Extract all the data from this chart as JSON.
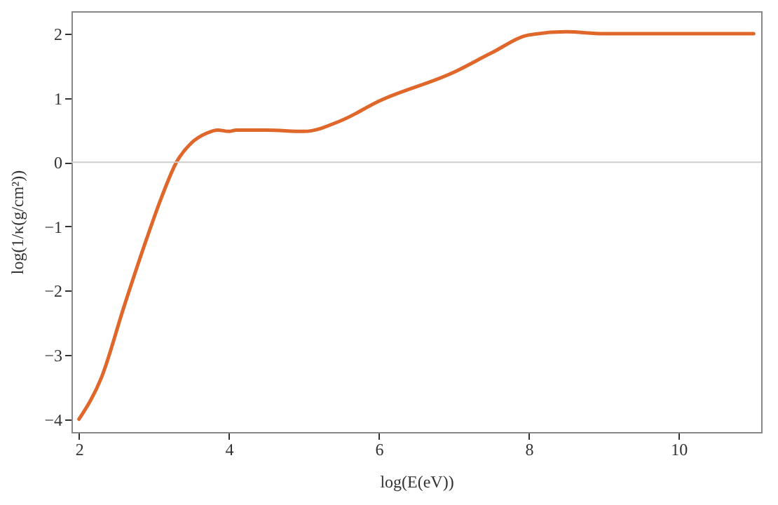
{
  "chart_data": {
    "type": "line",
    "xlabel": "log(E(eV))",
    "ylabel": "log(1/κ(g/cm²))",
    "x": [
      2,
      2.3,
      2.6,
      2.9,
      3.1,
      3.3,
      3.5,
      3.7,
      3.85,
      4,
      4.1,
      4.5,
      5,
      5.5,
      6,
      7,
      7.5,
      8,
      8.5,
      9,
      11
    ],
    "series": [
      {
        "color": "#e0672a",
        "values": [
          -4,
          -3.35,
          -2.25,
          -1.2,
          -0.55,
          0,
          0.3,
          0.45,
          0.5,
          0.48,
          0.5,
          0.5,
          0.48,
          0.65,
          0.95,
          1.4,
          1.7,
          1.98,
          2.03,
          2,
          2
        ]
      }
    ],
    "xlim": [
      1.9,
      11.1
    ],
    "ylim": [
      -4.2,
      2.35
    ],
    "xticks": [
      2,
      4,
      6,
      8,
      10
    ],
    "yticks": [
      -4,
      -3,
      -2,
      -1,
      0,
      1,
      2
    ],
    "ref_lines": [
      {
        "axis": "y",
        "value": 0,
        "color": "#cccccc"
      }
    ],
    "grid": false
  }
}
